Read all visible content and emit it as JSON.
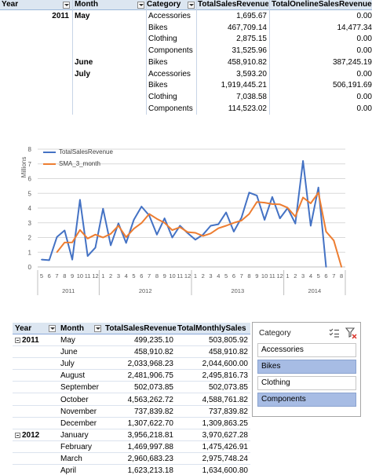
{
  "table1": {
    "headers": {
      "year": "Year",
      "month": "Month",
      "category": "Category",
      "tsr": "TotalSalesRevenue",
      "tor": "TotalOnelineSalesRevenue"
    },
    "rows": [
      {
        "year": "2011",
        "month": "May",
        "category": "Accessories",
        "tsr": "1,695.67",
        "tor": "0.00"
      },
      {
        "year": "",
        "month": "",
        "category": "Bikes",
        "tsr": "467,709.14",
        "tor": "14,477.34"
      },
      {
        "year": "",
        "month": "",
        "category": "Clothing",
        "tsr": "2,875.15",
        "tor": "0.00"
      },
      {
        "year": "",
        "month": "",
        "category": "Components",
        "tsr": "31,525.96",
        "tor": "0.00"
      },
      {
        "year": "",
        "month": "June",
        "category": "Bikes",
        "tsr": "458,910.82",
        "tor": "387,245.19"
      },
      {
        "year": "",
        "month": "July",
        "category": "Accessories",
        "tsr": "3,593.20",
        "tor": "0.00"
      },
      {
        "year": "",
        "month": "",
        "category": "Bikes",
        "tsr": "1,919,445.21",
        "tor": "506,191.69"
      },
      {
        "year": "",
        "month": "",
        "category": "Clothing",
        "tsr": "7,038.58",
        "tor": "0.00"
      },
      {
        "year": "",
        "month": "",
        "category": "Components",
        "tsr": "114,523.02",
        "tor": "0.00"
      }
    ]
  },
  "chart_data": {
    "type": "line",
    "title": "",
    "xlabel": "",
    "ylabel": "Millions",
    "ylim": [
      0,
      8
    ],
    "yticks": [
      "0",
      "1",
      "2",
      "3",
      "4",
      "5",
      "6",
      "7",
      "8"
    ],
    "grid": true,
    "legend_position": "top-left",
    "month_labels": [
      "5",
      "6",
      "7",
      "8",
      "9",
      "10",
      "11",
      "12",
      "1",
      "2",
      "3",
      "4",
      "5",
      "6",
      "7",
      "8",
      "9",
      "10",
      "11",
      "12",
      "1",
      "2",
      "3",
      "4",
      "5",
      "6",
      "7",
      "8",
      "9",
      "10",
      "11",
      "12",
      "1",
      "2",
      "3",
      "4",
      "5",
      "6",
      "7",
      "8"
    ],
    "year_groups": [
      {
        "label": "2011",
        "count": 8
      },
      {
        "label": "2012",
        "count": 12
      },
      {
        "label": "2013",
        "count": 12
      },
      {
        "label": "2014",
        "count": 8
      }
    ],
    "series": [
      {
        "name": "TotalSalesRevenue",
        "color": "#4472c4",
        "values": [
          0.5,
          0.46,
          2.03,
          2.48,
          0.5,
          4.56,
          0.74,
          1.31,
          3.96,
          1.47,
          2.96,
          1.63,
          3.2,
          4.1,
          3.5,
          2.2,
          3.3,
          2.0,
          2.8,
          2.3,
          1.85,
          2.2,
          2.8,
          2.9,
          3.7,
          2.4,
          3.35,
          5.05,
          4.85,
          3.2,
          4.75,
          3.3,
          4.0,
          2.95,
          7.2,
          2.8,
          5.4,
          0.0,
          null,
          null
        ]
      },
      {
        "name": "SMA_3_month",
        "color": "#ed7d31",
        "values": [
          null,
          null,
          1.0,
          1.66,
          1.67,
          2.51,
          1.93,
          2.2,
          2.0,
          2.25,
          2.8,
          2.02,
          2.6,
          2.98,
          3.6,
          3.27,
          3.0,
          2.5,
          2.7,
          2.37,
          2.32,
          2.1,
          2.28,
          2.63,
          2.8,
          3.0,
          3.15,
          3.6,
          4.41,
          4.37,
          4.27,
          4.25,
          4.02,
          3.42,
          4.72,
          4.32,
          5.05,
          2.4,
          1.8,
          0.0
        ]
      }
    ]
  },
  "table2": {
    "headers": {
      "year": "Year",
      "month": "Month",
      "tsr": "TotalSalesRevenue",
      "tms": "TotalMonthlySales"
    },
    "rows": [
      {
        "year": "2011",
        "month": "May",
        "tsr": "499,235.10",
        "tms": "503,805.92"
      },
      {
        "year": "",
        "month": "June",
        "tsr": "458,910.82",
        "tms": "458,910.82"
      },
      {
        "year": "",
        "month": "July",
        "tsr": "2,033,968.23",
        "tms": "2,044,600.00"
      },
      {
        "year": "",
        "month": "August",
        "tsr": "2,481,906.75",
        "tms": "2,495,816.73"
      },
      {
        "year": "",
        "month": "September",
        "tsr": "502,073.85",
        "tms": "502,073.85"
      },
      {
        "year": "",
        "month": "October",
        "tsr": "4,563,262.72",
        "tms": "4,588,761.82"
      },
      {
        "year": "",
        "month": "November",
        "tsr": "737,839.82",
        "tms": "737,839.82"
      },
      {
        "year": "",
        "month": "December",
        "tsr": "1,307,622.70",
        "tms": "1,309,863.25"
      },
      {
        "year": "2012",
        "month": "January",
        "tsr": "3,956,218.81",
        "tms": "3,970,627.28"
      },
      {
        "year": "",
        "month": "February",
        "tsr": "1,469,997.88",
        "tms": "1,475,426.91"
      },
      {
        "year": "",
        "month": "March",
        "tsr": "2,960,683.23",
        "tms": "2,975,748.24"
      },
      {
        "year": "",
        "month": "April",
        "tsr": "1,623,213.18",
        "tms": "1,634,600.80"
      }
    ]
  },
  "slicer": {
    "title": "Category",
    "icons": [
      "multi-select-icon",
      "clear-filter-icon"
    ],
    "options": [
      {
        "label": "Accessories",
        "selected": false
      },
      {
        "label": "Bikes",
        "selected": true
      },
      {
        "label": "Clothing",
        "selected": false
      },
      {
        "label": "Components",
        "selected": true
      }
    ]
  }
}
